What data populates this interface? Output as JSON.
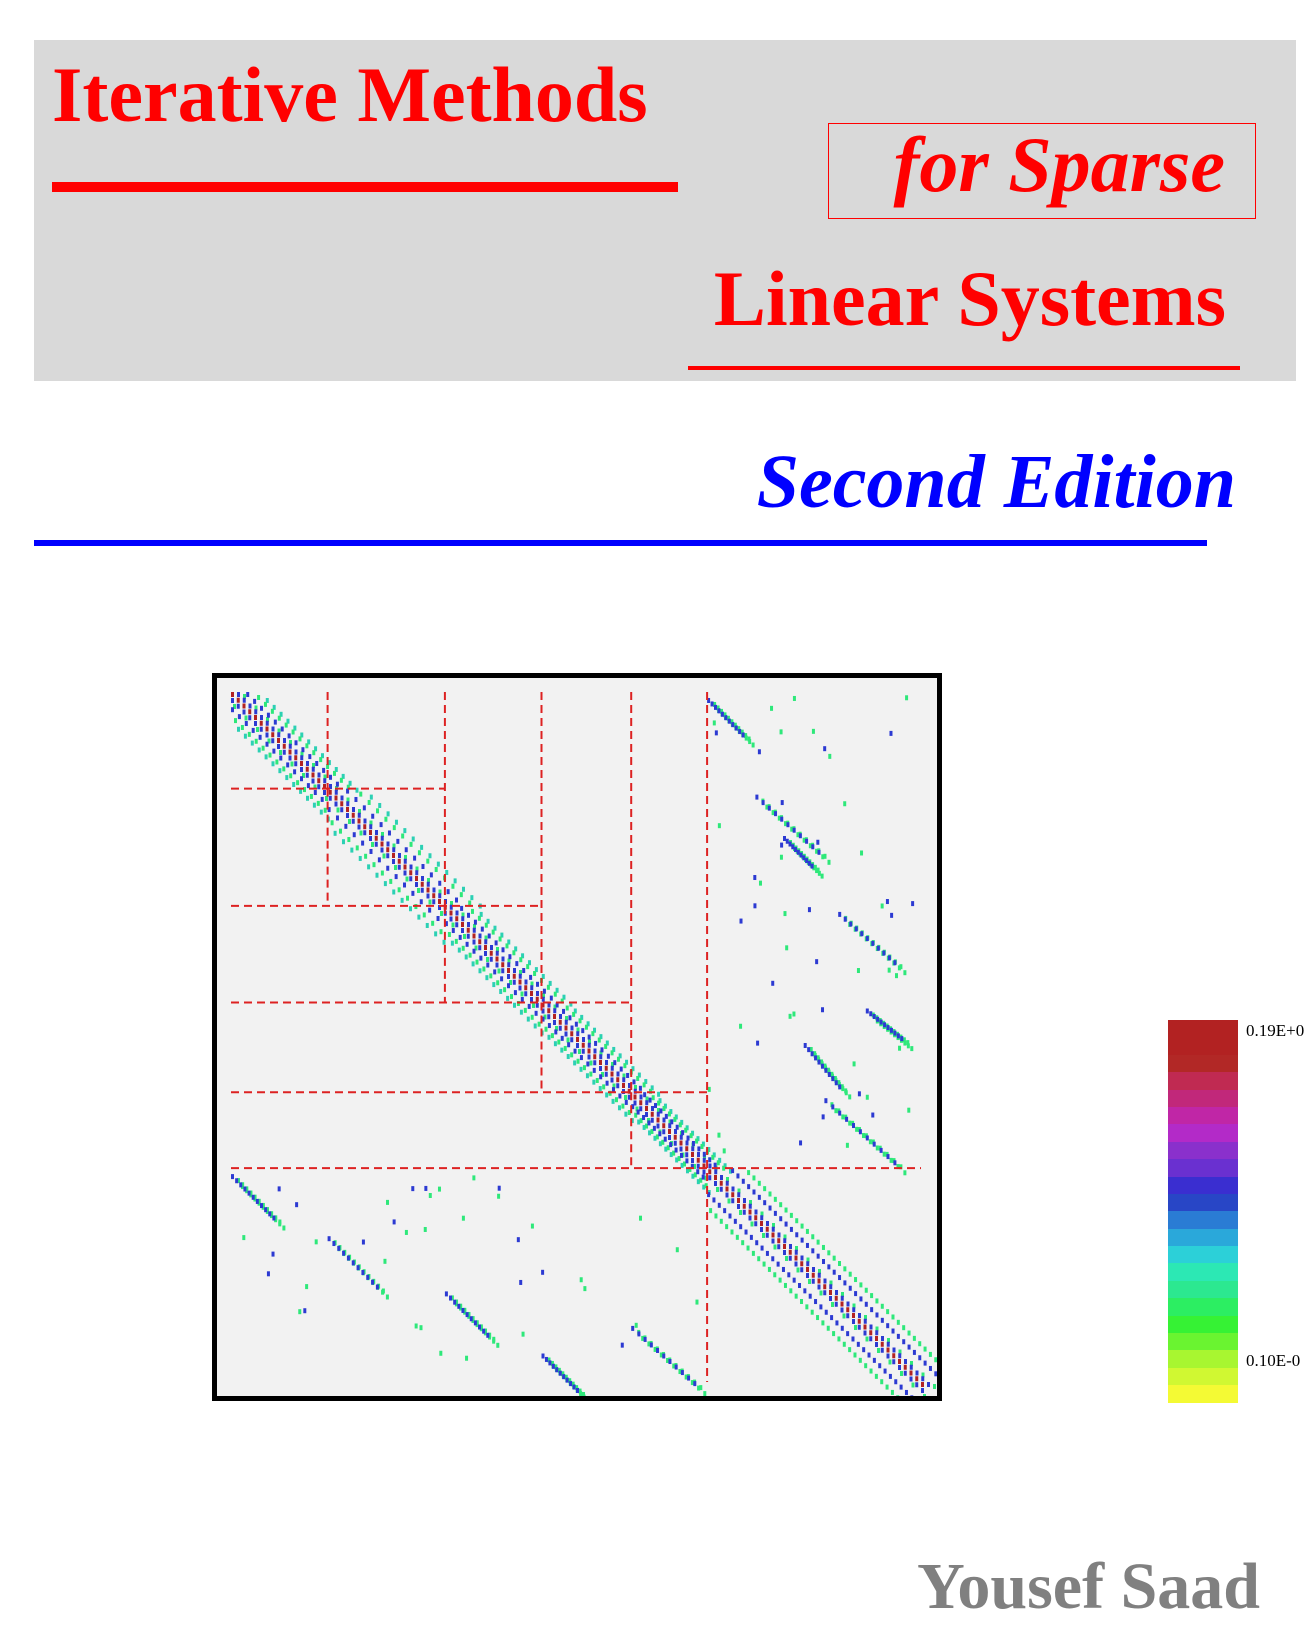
{
  "cover": {
    "title_line1": "Iterative Methods",
    "title_line2": "for Sparse",
    "title_line3": "Linear Systems",
    "edition": "Second Edition",
    "author": "Yousef Saad"
  },
  "colors": {
    "title": "#ff0000",
    "edition": "#0000ff",
    "author": "#808080",
    "title_band": "#d9d9d9",
    "plot_background": "#f2f2f2",
    "partition_lines": "#dd2222"
  },
  "figure": {
    "kind": "sparse matrix pattern",
    "colorbar": {
      "max_label": "0.19E+0",
      "min_label": "0.10E-0",
      "colors": [
        "#b22222",
        "#b22222",
        "#b22826",
        "#c02a52",
        "#c1287a",
        "#c026a6",
        "#b32ac8",
        "#8a30cc",
        "#6a30d0",
        "#3a2ed0",
        "#2846c6",
        "#2a7cd4",
        "#2aa8da",
        "#2cd0d8",
        "#2ce8b4",
        "#2ce890",
        "#2cee62",
        "#36f234",
        "#6af430",
        "#a8f630",
        "#d0f832",
        "#f4fa34"
      ]
    }
  }
}
